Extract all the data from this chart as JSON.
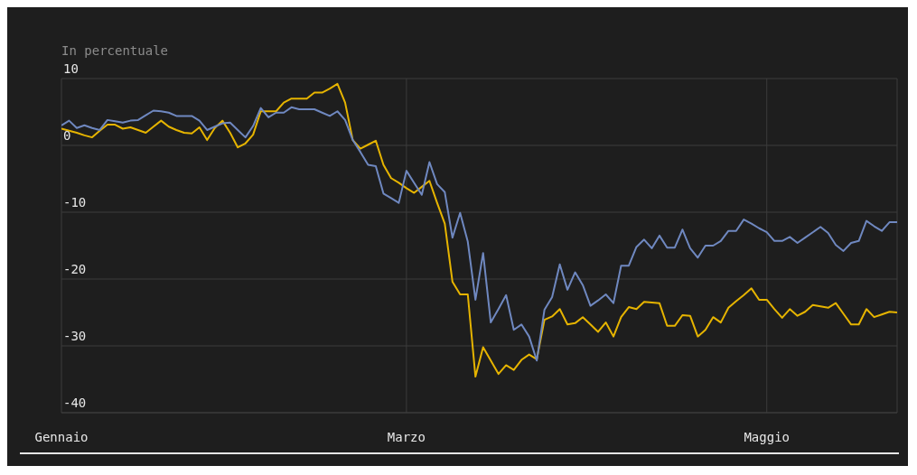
{
  "chart_data": {
    "type": "line",
    "ylabel": "In percentuale",
    "categories": [
      "Gennaio",
      null,
      null,
      null,
      null,
      null,
      null,
      null,
      null,
      null,
      null,
      null,
      null,
      null,
      null,
      null,
      null,
      null,
      null,
      null,
      null,
      null,
      null,
      null,
      null,
      null,
      null,
      null,
      null,
      null,
      null,
      null,
      null,
      null,
      null,
      null,
      null,
      null,
      null,
      null,
      null,
      null,
      null,
      null,
      null,
      "Marzo",
      null,
      null,
      null,
      null,
      null,
      null,
      null,
      null,
      null,
      null,
      null,
      null,
      null,
      null,
      null,
      null,
      null,
      null,
      null,
      null,
      null,
      null,
      null,
      null,
      null,
      null,
      null,
      null,
      null,
      null,
      null,
      null,
      null,
      null,
      null,
      null,
      null,
      null,
      null,
      null,
      null,
      null,
      null,
      null,
      null,
      null,
      "Maggio",
      null,
      null,
      null,
      null,
      null,
      null,
      null,
      null,
      null,
      null,
      null,
      null,
      null,
      null,
      null,
      null,
      null
    ],
    "ylim": [
      -40,
      10
    ],
    "yticks": [
      -40,
      -30,
      -20,
      -10,
      0,
      10
    ],
    "grid": true,
    "series": [
      {
        "color": "#e6b400",
        "values": [
          2.5,
          2.2,
          1.9,
          1.5,
          1.2,
          2.2,
          3.1,
          3.1,
          2.5,
          2.7,
          2.3,
          1.9,
          2.8,
          3.7,
          2.8,
          2.3,
          1.9,
          1.8,
          2.7,
          0.8,
          2.6,
          3.7,
          1.9,
          -0.3,
          0.3,
          1.6,
          5.1,
          5.1,
          5.1,
          6.4,
          7.0,
          7.0,
          7.0,
          7.9,
          7.9,
          8.5,
          9.2,
          6.4,
          0.8,
          -0.5,
          0.1,
          0.7,
          -2.9,
          -4.9,
          -5.6,
          -6.4,
          -7.1,
          -6.2,
          -5.3,
          -8.6,
          -11.7,
          -20.4,
          -22.3,
          -22.3,
          -34.6,
          -30.2,
          -32.2,
          -34.2,
          -32.9,
          -33.6,
          -32.1,
          -31.3,
          -32.0,
          -26.1,
          -25.6,
          -24.5,
          -26.8,
          -26.6,
          -25.7,
          -26.8,
          -27.9,
          -26.5,
          -28.6,
          -25.7,
          -24.2,
          -24.5,
          -23.4,
          -23.5,
          -23.6,
          -27.0,
          -27.0,
          -25.4,
          -25.5,
          -28.6,
          -27.6,
          -25.7,
          -26.5,
          -24.3,
          -23.3,
          -22.4,
          -21.4,
          -23.1,
          -23.1,
          -24.5,
          -25.8,
          -24.5,
          -25.5,
          -24.9,
          -23.9,
          -24.1,
          -24.3,
          -23.6,
          -25.2,
          -26.8,
          -26.8,
          -24.5,
          -25.7,
          -25.3,
          -24.9,
          -25.0
        ]
      },
      {
        "color": "#6f88c0",
        "values": [
          3.0,
          3.7,
          2.6,
          3.0,
          2.6,
          2.3,
          3.8,
          3.6,
          3.4,
          3.7,
          3.8,
          4.5,
          5.2,
          5.1,
          4.9,
          4.4,
          4.4,
          4.4,
          3.7,
          2.3,
          2.8,
          3.3,
          3.4,
          2.3,
          1.2,
          2.9,
          5.6,
          4.2,
          4.9,
          4.9,
          5.7,
          5.4,
          5.4,
          5.4,
          4.9,
          4.4,
          5.1,
          3.8,
          0.8,
          -1.0,
          -2.9,
          -3.1,
          -7.2,
          -7.9,
          -8.6,
          -3.8,
          -5.6,
          -7.4,
          -2.5,
          -5.8,
          -7.0,
          -13.8,
          -10.1,
          -14.4,
          -23.1,
          -16.1,
          -26.5,
          -24.5,
          -22.4,
          -27.6,
          -26.8,
          -28.6,
          -32.2,
          -24.6,
          -22.7,
          -17.8,
          -21.6,
          -19.0,
          -20.9,
          -24.0,
          -23.2,
          -22.3,
          -23.6,
          -18.0,
          -18.0,
          -15.2,
          -14.1,
          -15.4,
          -13.5,
          -15.3,
          -15.3,
          -12.6,
          -15.4,
          -16.8,
          -15.0,
          -15.0,
          -14.3,
          -12.8,
          -12.8,
          -11.1,
          -11.7,
          -12.4,
          -13.0,
          -14.3,
          -14.3,
          -13.7,
          -14.6,
          -13.8,
          -13.0,
          -12.2,
          -13.1,
          -14.9,
          -15.8,
          -14.6,
          -14.3,
          -11.3,
          -12.1,
          -12.8,
          -11.5,
          -11.5
        ]
      }
    ]
  }
}
